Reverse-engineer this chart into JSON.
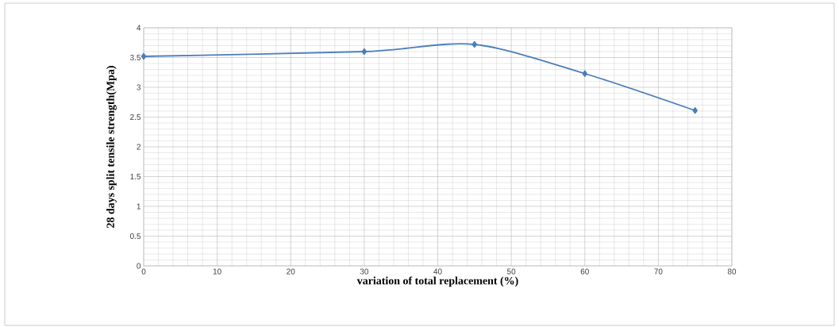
{
  "chart_data": {
    "type": "line",
    "xlabel": "variation of total replacement (%)",
    "ylabel": "28 days split tensile strength(Mpa)",
    "x": [
      0,
      30,
      45,
      60,
      75
    ],
    "series": [
      {
        "color": "#4a7ebb",
        "values": [
          3.52,
          3.6,
          3.72,
          3.23,
          2.61
        ]
      }
    ],
    "xlim": [
      0,
      80
    ],
    "xticks": [
      0,
      10,
      20,
      30,
      40,
      50,
      60,
      70,
      80
    ],
    "ylim": [
      0,
      4
    ],
    "yticks": [
      0,
      0.5,
      1,
      1.5,
      2,
      2.5,
      3,
      3.5,
      4
    ],
    "grid": true,
    "marker": "diamond",
    "line_style": "solid"
  }
}
